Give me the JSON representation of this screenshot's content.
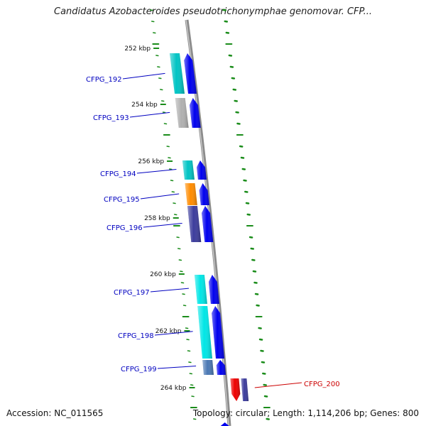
{
  "title": "Candidatus Azobacteroides pseudotrichonymphae genomovar. CFP...",
  "footer": {
    "accession": "Accession: NC_011565",
    "summary": "Topology: circular; Length: 1,114,206 bp; Genes: 800"
  },
  "colors": {
    "backbone": "#8c8c8c",
    "tick": "#1a8c1a",
    "label_forward": "#0000c0",
    "label_reverse": "#cc0000",
    "cds": "#0000ee"
  },
  "scale_labels": [
    "252 kbp",
    "254 kbp",
    "256 kbp",
    "258 kbp",
    "260 kbp",
    "262 kbp",
    "264 kbp"
  ],
  "genes": [
    {
      "name": "CFPG_192",
      "strand": "forward",
      "category_color": "#00c4c4"
    },
    {
      "name": "CFPG_193",
      "strand": "forward",
      "category_color": "#b0b0b0"
    },
    {
      "name": "CFPG_194",
      "strand": "forward",
      "category_color": "#00c4c4"
    },
    {
      "name": "CFPG_195",
      "strand": "forward",
      "category_color": "#ff8c00"
    },
    {
      "name": "CFPG_196",
      "strand": "forward",
      "category_color": "#3c3c9c"
    },
    {
      "name": "CFPG_197",
      "strand": "forward",
      "category_color": "#00e6e6"
    },
    {
      "name": "CFPG_198",
      "strand": "forward",
      "category_color": "#00e6e6"
    },
    {
      "name": "CFPG_199",
      "strand": "forward",
      "category_color": "#4a78b4"
    },
    {
      "name": "CFPG_200",
      "strand": "reverse",
      "category_color": "#3c3c9c"
    }
  ]
}
